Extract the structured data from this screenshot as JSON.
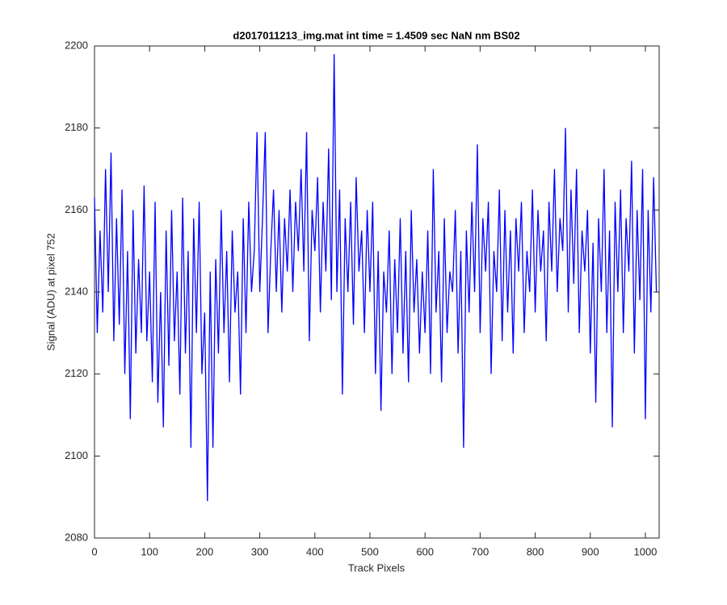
{
  "chart_data": {
    "type": "line",
    "title": "d2017011213_img.mat int time = 1.4509 sec  NaN nm BS02",
    "x_label": "Track Pixels",
    "y_label": "Signal (ADU) at pixel 752",
    "color": "#0000ff",
    "xlim": [
      0,
      1025
    ],
    "ylim": [
      2080,
      2200
    ],
    "xticks": [
      0,
      100,
      200,
      300,
      400,
      500,
      600,
      700,
      800,
      900,
      1000
    ],
    "yticks": [
      2080,
      2100,
      2120,
      2140,
      2160,
      2180,
      2200
    ],
    "x": [
      0,
      5,
      10,
      15,
      20,
      25,
      30,
      35,
      40,
      45,
      50,
      55,
      60,
      65,
      70,
      75,
      80,
      85,
      90,
      95,
      100,
      105,
      110,
      115,
      120,
      125,
      130,
      135,
      140,
      145,
      150,
      155,
      160,
      165,
      170,
      175,
      180,
      185,
      190,
      195,
      200,
      205,
      210,
      215,
      220,
      225,
      230,
      235,
      240,
      245,
      250,
      255,
      260,
      265,
      270,
      275,
      280,
      285,
      290,
      295,
      300,
      305,
      310,
      315,
      320,
      325,
      330,
      335,
      340,
      345,
      350,
      355,
      360,
      365,
      370,
      375,
      380,
      385,
      390,
      395,
      400,
      405,
      410,
      415,
      420,
      425,
      430,
      435,
      440,
      445,
      450,
      455,
      460,
      465,
      470,
      475,
      480,
      485,
      490,
      495,
      500,
      505,
      510,
      515,
      520,
      525,
      530,
      535,
      540,
      545,
      550,
      555,
      560,
      565,
      570,
      575,
      580,
      585,
      590,
      595,
      600,
      605,
      610,
      615,
      620,
      625,
      630,
      635,
      640,
      645,
      650,
      655,
      660,
      665,
      670,
      675,
      680,
      685,
      690,
      695,
      700,
      705,
      710,
      715,
      720,
      725,
      730,
      735,
      740,
      745,
      750,
      755,
      760,
      765,
      770,
      775,
      780,
      785,
      790,
      795,
      800,
      805,
      810,
      815,
      820,
      825,
      830,
      835,
      840,
      845,
      850,
      855,
      860,
      865,
      870,
      875,
      880,
      885,
      890,
      895,
      900,
      905,
      910,
      915,
      920,
      925,
      930,
      935,
      940,
      945,
      950,
      955,
      960,
      965,
      970,
      975,
      980,
      985,
      990,
      995,
      1000,
      1005,
      1010,
      1015,
      1020
    ],
    "values": [
      2163,
      2130,
      2155,
      2135,
      2170,
      2140,
      2174,
      2128,
      2158,
      2132,
      2165,
      2120,
      2150,
      2109,
      2160,
      2125,
      2148,
      2130,
      2166,
      2128,
      2145,
      2118,
      2162,
      2113,
      2140,
      2107,
      2155,
      2122,
      2160,
      2128,
      2145,
      2115,
      2163,
      2125,
      2150,
      2102,
      2158,
      2130,
      2162,
      2120,
      2135,
      2089,
      2145,
      2102,
      2148,
      2125,
      2160,
      2130,
      2150,
      2118,
      2155,
      2135,
      2145,
      2115,
      2158,
      2130,
      2162,
      2140,
      2150,
      2179,
      2140,
      2158,
      2179,
      2130,
      2150,
      2165,
      2140,
      2160,
      2135,
      2158,
      2145,
      2165,
      2140,
      2162,
      2150,
      2170,
      2145,
      2179,
      2128,
      2160,
      2150,
      2168,
      2135,
      2162,
      2145,
      2175,
      2138,
      2198,
      2140,
      2165,
      2115,
      2158,
      2140,
      2162,
      2132,
      2168,
      2145,
      2155,
      2130,
      2160,
      2140,
      2162,
      2120,
      2150,
      2111,
      2145,
      2135,
      2155,
      2120,
      2148,
      2130,
      2158,
      2125,
      2150,
      2118,
      2160,
      2135,
      2148,
      2125,
      2145,
      2130,
      2155,
      2120,
      2170,
      2135,
      2150,
      2118,
      2158,
      2130,
      2145,
      2140,
      2160,
      2125,
      2150,
      2102,
      2155,
      2135,
      2162,
      2140,
      2176,
      2130,
      2158,
      2145,
      2162,
      2120,
      2150,
      2140,
      2165,
      2128,
      2160,
      2135,
      2155,
      2125,
      2158,
      2145,
      2162,
      2130,
      2150,
      2140,
      2165,
      2135,
      2160,
      2145,
      2155,
      2128,
      2162,
      2145,
      2170,
      2140,
      2158,
      2150,
      2180,
      2135,
      2165,
      2142,
      2170,
      2130,
      2155,
      2145,
      2160,
      2125,
      2152,
      2113,
      2158,
      2140,
      2170,
      2130,
      2155,
      2107,
      2162,
      2140,
      2165,
      2130,
      2158,
      2145,
      2172,
      2125,
      2160,
      2138,
      2170,
      2109,
      2160,
      2135,
      2168,
      2140
    ]
  }
}
